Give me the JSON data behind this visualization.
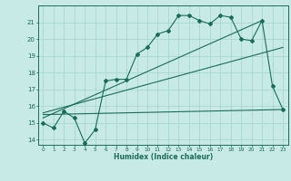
{
  "xlabel": "Humidex (Indice chaleur)",
  "ylabel": "",
  "background_color": "#c8eae6",
  "grid_color": "#aad8d4",
  "line_color": "#1a6b5a",
  "xlim": [
    -0.5,
    23.5
  ],
  "ylim": [
    13.7,
    22.0
  ],
  "yticks": [
    14,
    15,
    16,
    17,
    18,
    19,
    20,
    21
  ],
  "xticks": [
    0,
    1,
    2,
    3,
    4,
    5,
    6,
    7,
    8,
    9,
    10,
    11,
    12,
    13,
    14,
    15,
    16,
    17,
    18,
    19,
    20,
    21,
    22,
    23
  ],
  "series1_x": [
    0,
    1,
    2,
    3,
    4,
    5,
    6,
    7,
    8,
    9,
    10,
    11,
    12,
    13,
    14,
    15,
    16,
    17,
    18,
    19,
    20,
    21,
    22,
    23
  ],
  "series1_y": [
    15.0,
    14.7,
    15.7,
    15.3,
    13.8,
    14.6,
    17.5,
    17.6,
    17.6,
    19.1,
    19.5,
    20.3,
    20.5,
    21.4,
    21.4,
    21.1,
    20.9,
    21.4,
    21.3,
    20.0,
    19.9,
    21.1,
    17.2,
    15.8
  ],
  "series2_x": [
    0,
    21
  ],
  "series2_y": [
    15.3,
    21.1
  ],
  "series3_x": [
    0,
    23
  ],
  "series3_y": [
    15.6,
    19.5
  ],
  "series4_x": [
    0,
    23
  ],
  "series4_y": [
    15.5,
    15.8
  ]
}
